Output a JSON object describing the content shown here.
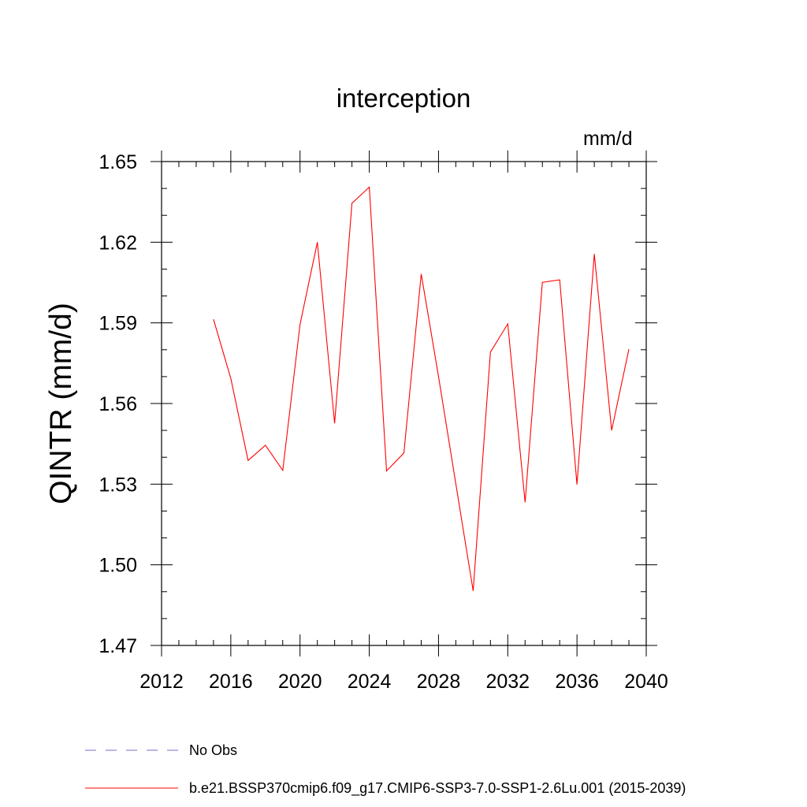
{
  "chart_data": {
    "type": "line",
    "title": "interception",
    "units": "mm/d",
    "ylabel": "QINTR  (mm/d)",
    "xlabel": "",
    "xlim": [
      2012,
      2040
    ],
    "ylim": [
      1.47,
      1.65
    ],
    "x_ticks": [
      2012,
      2016,
      2020,
      2024,
      2028,
      2032,
      2036,
      2040
    ],
    "x_tick_labels": [
      "2012",
      "2016",
      "2020",
      "2024",
      "2028",
      "2032",
      "2036",
      "2040"
    ],
    "y_ticks": [
      1.47,
      1.5,
      1.53,
      1.56,
      1.59,
      1.62,
      1.65
    ],
    "y_tick_labels": [
      "1.47",
      "1.50",
      "1.53",
      "1.56",
      "1.59",
      "1.62",
      "1.65"
    ],
    "grid": false,
    "legend_position": "bottom",
    "series": [
      {
        "name": "b.e21.BSSP370cmip6.f09_g17.CMIP6-SSP3-7.0-SSP1-2.6Lu.001 (2015-2039)",
        "color": "#ff0000",
        "style": "solid",
        "x": [
          2015,
          2016,
          2017,
          2018,
          2019,
          2020,
          2021,
          2022,
          2023,
          2024,
          2025,
          2026,
          2027,
          2028,
          2029,
          2030,
          2031,
          2032,
          2033,
          2034,
          2035,
          2036,
          2037,
          2038,
          2039
        ],
        "values": [
          1.5913,
          1.5693,
          1.5388,
          1.5445,
          1.5351,
          1.5894,
          1.62,
          1.5526,
          1.6345,
          1.6405,
          1.5349,
          1.5416,
          1.6082,
          1.5701,
          1.5301,
          1.4903,
          1.5791,
          1.5896,
          1.5232,
          1.6051,
          1.606,
          1.5299,
          1.6156,
          1.55,
          1.5802
        ]
      },
      {
        "name": "No Obs",
        "color": "#7b68c8",
        "style": "dashed",
        "x": [],
        "values": []
      }
    ]
  }
}
